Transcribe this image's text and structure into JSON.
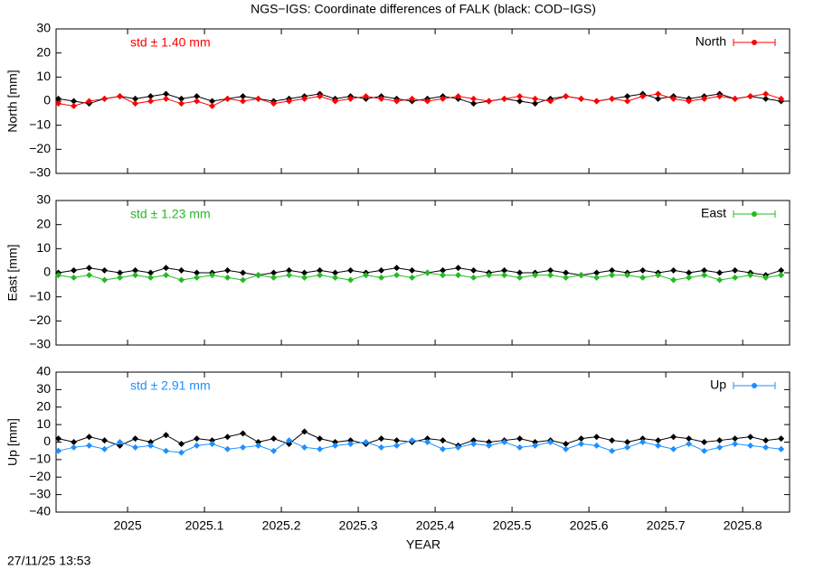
{
  "title": "NGS−IGS: Coordinate differences of FALK (black: COD−IGS)",
  "xlabel": "YEAR",
  "timestamp": "27/11/25 13:53",
  "chart_data": [
    {
      "type": "line",
      "ylabel": "North [mm]",
      "annotation": "std ± 1.40 mm",
      "xlim": [
        2024.907,
        2025.861
      ],
      "xticks": [
        2025,
        2025.1,
        2025.2,
        2025.3,
        2025.4,
        2025.5,
        2025.6,
        2025.7,
        2025.8
      ],
      "ylim": [
        -30,
        30
      ],
      "yticks": [
        {
          "value": -30,
          "label": "−30"
        },
        {
          "value": -20,
          "label": "−20"
        },
        {
          "value": -10,
          "label": "−10"
        },
        0,
        10,
        20,
        30
      ],
      "legend": "upper right",
      "x": [
        2024.91,
        2024.93,
        2024.95,
        2024.97,
        2024.99,
        2025.01,
        2025.03,
        2025.05,
        2025.07,
        2025.09,
        2025.11,
        2025.13,
        2025.15,
        2025.17,
        2025.19,
        2025.21,
        2025.23,
        2025.25,
        2025.27,
        2025.29,
        2025.31,
        2025.33,
        2025.35,
        2025.37,
        2025.39,
        2025.41,
        2025.43,
        2025.45,
        2025.47,
        2025.49,
        2025.51,
        2025.53,
        2025.55,
        2025.57,
        2025.59,
        2025.61,
        2025.63,
        2025.65,
        2025.67,
        2025.69,
        2025.71,
        2025.73,
        2025.75,
        2025.77,
        2025.79,
        2025.81,
        2025.83,
        2025.85
      ],
      "series": [
        {
          "color": "#000000",
          "values": [
            1,
            0,
            -1,
            1,
            2,
            1,
            2,
            3,
            1,
            2,
            0,
            1,
            2,
            1,
            0,
            1,
            2,
            3,
            1,
            2,
            1,
            2,
            1,
            0,
            1,
            2,
            1,
            -1,
            0,
            1,
            0,
            -1,
            1,
            2,
            1,
            0,
            1,
            2,
            3,
            1,
            2,
            1,
            2,
            3,
            1,
            2,
            1,
            0
          ]
        },
        {
          "name": "North",
          "color": "#ff0000",
          "values": [
            -1,
            -2,
            0,
            1,
            2,
            -1,
            0,
            1,
            -1,
            0,
            -2,
            1,
            0,
            1,
            -1,
            0,
            1,
            2,
            0,
            1,
            2,
            1,
            0,
            1,
            0,
            1,
            2,
            1,
            0,
            1,
            2,
            1,
            0,
            2,
            1,
            0,
            1,
            0,
            2,
            3,
            1,
            0,
            1,
            2,
            1,
            2,
            3,
            1
          ]
        }
      ]
    },
    {
      "type": "line",
      "ylabel": "East [mm]",
      "annotation": "std ± 1.23 mm",
      "xlim": [
        2024.907,
        2025.861
      ],
      "xticks": [
        2025,
        2025.1,
        2025.2,
        2025.3,
        2025.4,
        2025.5,
        2025.6,
        2025.7,
        2025.8
      ],
      "ylim": [
        -30,
        30
      ],
      "yticks": [
        {
          "value": -30,
          "label": "−30"
        },
        {
          "value": -20,
          "label": "−20"
        },
        {
          "value": -10,
          "label": "−10"
        },
        0,
        10,
        20,
        30
      ],
      "legend": "upper right",
      "x": [
        2024.91,
        2024.93,
        2024.95,
        2024.97,
        2024.99,
        2025.01,
        2025.03,
        2025.05,
        2025.07,
        2025.09,
        2025.11,
        2025.13,
        2025.15,
        2025.17,
        2025.19,
        2025.21,
        2025.23,
        2025.25,
        2025.27,
        2025.29,
        2025.31,
        2025.33,
        2025.35,
        2025.37,
        2025.39,
        2025.41,
        2025.43,
        2025.45,
        2025.47,
        2025.49,
        2025.51,
        2025.53,
        2025.55,
        2025.57,
        2025.59,
        2025.61,
        2025.63,
        2025.65,
        2025.67,
        2025.69,
        2025.71,
        2025.73,
        2025.75,
        2025.77,
        2025.79,
        2025.81,
        2025.83,
        2025.85
      ],
      "series": [
        {
          "color": "#000000",
          "values": [
            0,
            1,
            2,
            1,
            0,
            1,
            0,
            2,
            1,
            0,
            0,
            1,
            0,
            -1,
            0,
            1,
            0,
            1,
            0,
            1,
            0,
            1,
            2,
            1,
            0,
            1,
            2,
            1,
            0,
            1,
            0,
            0,
            1,
            0,
            -1,
            0,
            1,
            0,
            1,
            0,
            1,
            0,
            1,
            0,
            1,
            0,
            -1,
            1
          ]
        },
        {
          "name": "East",
          "color": "#22bb22",
          "values": [
            -1,
            -2,
            -1,
            -3,
            -2,
            -1,
            -2,
            -1,
            -3,
            -2,
            -1,
            -2,
            -3,
            -1,
            -2,
            -1,
            -2,
            -1,
            -2,
            -3,
            -1,
            -2,
            -1,
            -2,
            0,
            -1,
            -1,
            -2,
            -1,
            -1,
            -2,
            -1,
            -1,
            -2,
            -1,
            -2,
            -1,
            -1,
            -2,
            -1,
            -3,
            -2,
            -1,
            -3,
            -2,
            -1,
            -2,
            -1
          ]
        }
      ]
    },
    {
      "type": "line",
      "ylabel": "Up [mm]",
      "annotation": "std ± 2.91 mm",
      "xlim": [
        2024.907,
        2025.861
      ],
      "xticks": [
        2025,
        2025.1,
        2025.2,
        2025.3,
        2025.4,
        2025.5,
        2025.6,
        2025.7,
        2025.8
      ],
      "ylim": [
        -40,
        40
      ],
      "yticks": [
        {
          "value": -40,
          "label": "−40"
        },
        {
          "value": -30,
          "label": "−30"
        },
        {
          "value": -20,
          "label": "−20"
        },
        {
          "value": -10,
          "label": "−10"
        },
        0,
        10,
        20,
        30,
        40
      ],
      "legend": "upper right",
      "x": [
        2024.91,
        2024.93,
        2024.95,
        2024.97,
        2024.99,
        2025.01,
        2025.03,
        2025.05,
        2025.07,
        2025.09,
        2025.11,
        2025.13,
        2025.15,
        2025.17,
        2025.19,
        2025.21,
        2025.23,
        2025.25,
        2025.27,
        2025.29,
        2025.31,
        2025.33,
        2025.35,
        2025.37,
        2025.39,
        2025.41,
        2025.43,
        2025.45,
        2025.47,
        2025.49,
        2025.51,
        2025.53,
        2025.55,
        2025.57,
        2025.59,
        2025.61,
        2025.63,
        2025.65,
        2025.67,
        2025.69,
        2025.71,
        2025.73,
        2025.75,
        2025.77,
        2025.79,
        2025.81,
        2025.83,
        2025.85
      ],
      "series": [
        {
          "color": "#000000",
          "values": [
            2,
            0,
            3,
            1,
            -2,
            2,
            0,
            4,
            -1,
            2,
            1,
            3,
            5,
            0,
            2,
            -1,
            6,
            2,
            0,
            1,
            -1,
            2,
            1,
            0,
            2,
            1,
            -2,
            1,
            0,
            1,
            2,
            0,
            1,
            -1,
            2,
            3,
            1,
            0,
            2,
            1,
            3,
            2,
            0,
            1,
            2,
            3,
            1,
            2
          ]
        },
        {
          "name": "Up",
          "color": "#1e8fff",
          "values": [
            -5,
            -3,
            -2,
            -4,
            0,
            -3,
            -2,
            -5,
            -6,
            -2,
            -1,
            -4,
            -3,
            -2,
            -5,
            1,
            -3,
            -4,
            -2,
            -1,
            0,
            -3,
            -2,
            1,
            0,
            -4,
            -3,
            -1,
            -2,
            0,
            -3,
            -2,
            0,
            -4,
            -1,
            -2,
            -5,
            -3,
            0,
            -2,
            -4,
            -1,
            -5,
            -3,
            -1,
            -2,
            -3,
            -4
          ]
        }
      ]
    }
  ]
}
